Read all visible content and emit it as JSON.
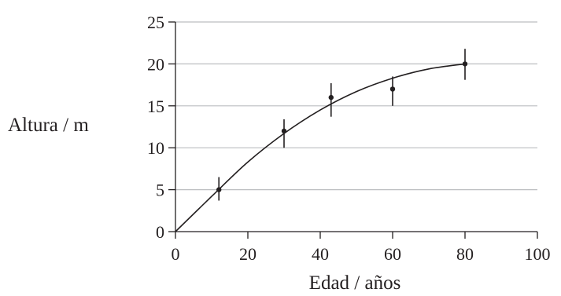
{
  "chart_data": {
    "type": "scatter",
    "title": "",
    "xlabel": "Edad / años",
    "ylabel": "Altura / m",
    "xlim": [
      0,
      100
    ],
    "ylim": [
      0,
      25
    ],
    "x_ticks": [
      "0",
      "20",
      "40",
      "60",
      "80",
      "100"
    ],
    "y_ticks": [
      "0",
      "5",
      "10",
      "15",
      "20",
      "25"
    ],
    "grid": "horizontal",
    "points": [
      {
        "x": 12,
        "y": 5,
        "err_low": 3.7,
        "err_high": 6.5
      },
      {
        "x": 30,
        "y": 12,
        "err_low": 10,
        "err_high": 13.4
      },
      {
        "x": 43,
        "y": 16,
        "err_low": 13.7,
        "err_high": 17.7
      },
      {
        "x": 60,
        "y": 17,
        "err_low": 15,
        "err_high": 18.5
      },
      {
        "x": 80,
        "y": 20,
        "err_low": 18.1,
        "err_high": 21.8
      }
    ],
    "fit_curve": [
      [
        0,
        0
      ],
      [
        10,
        4.2
      ],
      [
        20,
        8.3
      ],
      [
        30,
        11.7
      ],
      [
        40,
        14.5
      ],
      [
        50,
        16.7
      ],
      [
        60,
        18.3
      ],
      [
        70,
        19.4
      ],
      [
        80,
        20
      ]
    ],
    "colors": {
      "ink": "#231f20",
      "grid": "#bcbec0"
    }
  }
}
